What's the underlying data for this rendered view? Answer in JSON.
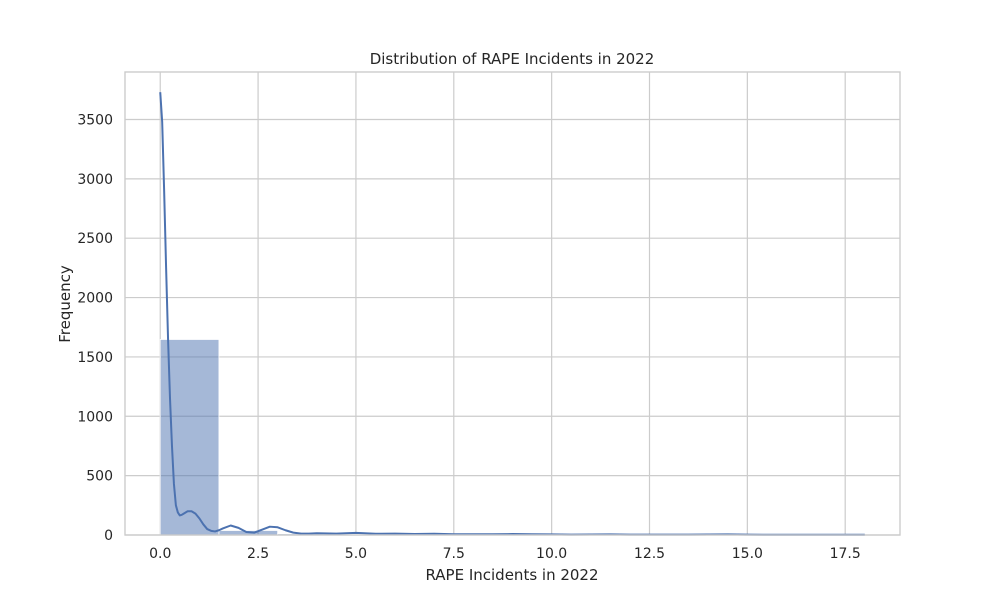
{
  "chart_data": {
    "type": "bar",
    "title": "Distribution of RAPE Incidents in 2022",
    "xlabel": "RAPE Incidents in 2022",
    "ylabel": "Frequency",
    "xlim": [
      -0.9,
      18.9
    ],
    "ylim": [
      0,
      3900
    ],
    "xticks": [
      0.0,
      2.5,
      5.0,
      7.5,
      10.0,
      12.5,
      15.0,
      17.5
    ],
    "xtick_labels": [
      "0.0",
      "2.5",
      "5.0",
      "7.5",
      "10.0",
      "12.5",
      "15.0",
      "17.5"
    ],
    "yticks": [
      0,
      500,
      1000,
      1500,
      2000,
      2500,
      3000,
      3500
    ],
    "ytick_labels": [
      "0",
      "500",
      "1000",
      "1500",
      "2000",
      "2500",
      "3000",
      "3500"
    ],
    "grid": true,
    "colors": {
      "bar": "#4c72b0",
      "kde": "#4c72b0",
      "grid": "#cccccc"
    },
    "histogram": {
      "bin_edges": [
        0,
        1.5,
        3,
        4.5,
        6,
        7.5,
        9,
        10.5,
        12,
        13.5,
        15,
        16.5,
        18
      ],
      "counts": [
        1647,
        38,
        10,
        5,
        3,
        2,
        2,
        1,
        1,
        2,
        1,
        1
      ]
    },
    "kde": {
      "x": [
        0.0,
        0.05,
        0.1,
        0.15,
        0.2,
        0.25,
        0.3,
        0.35,
        0.4,
        0.45,
        0.5,
        0.55,
        0.6,
        0.7,
        0.8,
        0.9,
        1.0,
        1.1,
        1.2,
        1.3,
        1.4,
        1.5,
        1.6,
        1.8,
        2.0,
        2.2,
        2.4,
        2.6,
        2.8,
        3.0,
        3.2,
        3.4,
        3.6,
        3.8,
        4.0,
        4.5,
        5.0,
        5.5,
        6.0,
        6.5,
        7.0,
        7.5,
        8.0,
        8.5,
        9.0,
        9.5,
        10.0,
        10.5,
        11.0,
        11.5,
        12.0,
        12.5,
        13.0,
        13.5,
        14.0,
        14.5,
        15.0,
        15.5,
        16.0,
        16.5,
        17.0,
        17.5,
        18.0
      ],
      "y": [
        3730,
        3480,
        2900,
        2250,
        1650,
        1150,
        750,
        430,
        250,
        190,
        165,
        170,
        180,
        200,
        200,
        180,
        140,
        90,
        50,
        35,
        30,
        40,
        55,
        80,
        60,
        25,
        20,
        45,
        70,
        65,
        40,
        20,
        12,
        12,
        15,
        12,
        18,
        10,
        12,
        8,
        10,
        6,
        6,
        6,
        8,
        6,
        5,
        3,
        4,
        5,
        3,
        3,
        3,
        3,
        4,
        5,
        3,
        2,
        2,
        2,
        2,
        2,
        2
      ]
    }
  }
}
